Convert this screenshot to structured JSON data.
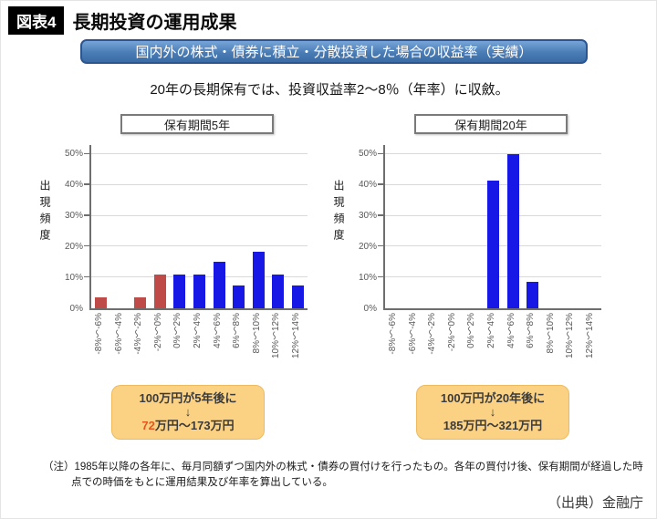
{
  "header": {
    "figure_label": "図表4",
    "title": "長期投資の運用成果"
  },
  "banner": {
    "text": "国内外の株式・債券に積立・分散投資した場合の収益率（実績）"
  },
  "subtitle": "20年の長期保有では、投資収益率2～8％（年率）に収斂。",
  "colors": {
    "positive_bar": "#1717e6",
    "negative_bar": "#be4b48",
    "banner_border": "#2b5590",
    "callout_bg": "#fbd183",
    "highlight_text": "#e2581e",
    "gridline": "#d9d9d9",
    "axis": "#6e6e6e"
  },
  "chart_data": [
    {
      "type": "bar",
      "title": "保有期間5年",
      "ylabel": "出現頻度",
      "xlabel": "",
      "ylim": [
        0,
        50
      ],
      "grid": true,
      "y_ticks": [
        "50%",
        "40%",
        "30%",
        "20%",
        "10%",
        "0%"
      ],
      "categories": [
        "-8%～-6%",
        "-6%～-4%",
        "-4%～-2%",
        "-2%～0%",
        "0%～2%",
        "2%～4%",
        "4%～6%",
        "6%～8%",
        "8%～10%",
        "10%～12%",
        "12%～14%"
      ],
      "values": [
        3.5,
        0,
        3.5,
        11,
        11,
        11,
        15,
        7.5,
        18.5,
        11,
        7.5
      ],
      "bar_colors": [
        "negative",
        "negative",
        "negative",
        "negative",
        "positive",
        "positive",
        "positive",
        "positive",
        "positive",
        "positive",
        "positive"
      ]
    },
    {
      "type": "bar",
      "title": "保有期間20年",
      "ylabel": "出現頻度",
      "xlabel": "",
      "ylim": [
        0,
        50
      ],
      "grid": true,
      "y_ticks": [
        "50%",
        "40%",
        "30%",
        "20%",
        "10%",
        "0%"
      ],
      "categories": [
        "-8%～-6%",
        "-6%～-4%",
        "-4%～-2%",
        "-2%～0%",
        "0%～2%",
        "2%～4%",
        "4%～6%",
        "6%～8%",
        "8%～10%",
        "10%～12%",
        "12%～14%"
      ],
      "values": [
        0,
        0,
        0,
        0,
        0,
        41.5,
        50,
        8.5,
        0,
        0,
        0
      ],
      "bar_colors": [
        "positive",
        "positive",
        "positive",
        "positive",
        "positive",
        "positive",
        "positive",
        "positive",
        "positive",
        "positive",
        "positive"
      ]
    }
  ],
  "callouts": [
    {
      "line1": "100万円が5年後に",
      "arrow": "↓",
      "highlight": "72",
      "rest": "万円～173万円"
    },
    {
      "line1": "100万円が20年後に",
      "arrow": "↓",
      "highlight": "",
      "rest": "185万円～321万円"
    }
  ],
  "footnote": {
    "line1": "（注）1985年以降の各年に、毎月同額ずつ国内外の株式・債券の買付けを行ったもの。各年の買付け後、保有期間が経過した時",
    "line2": "点での時価をもとに運用結果及び年率を算出している。"
  },
  "source": "（出典）金融庁"
}
